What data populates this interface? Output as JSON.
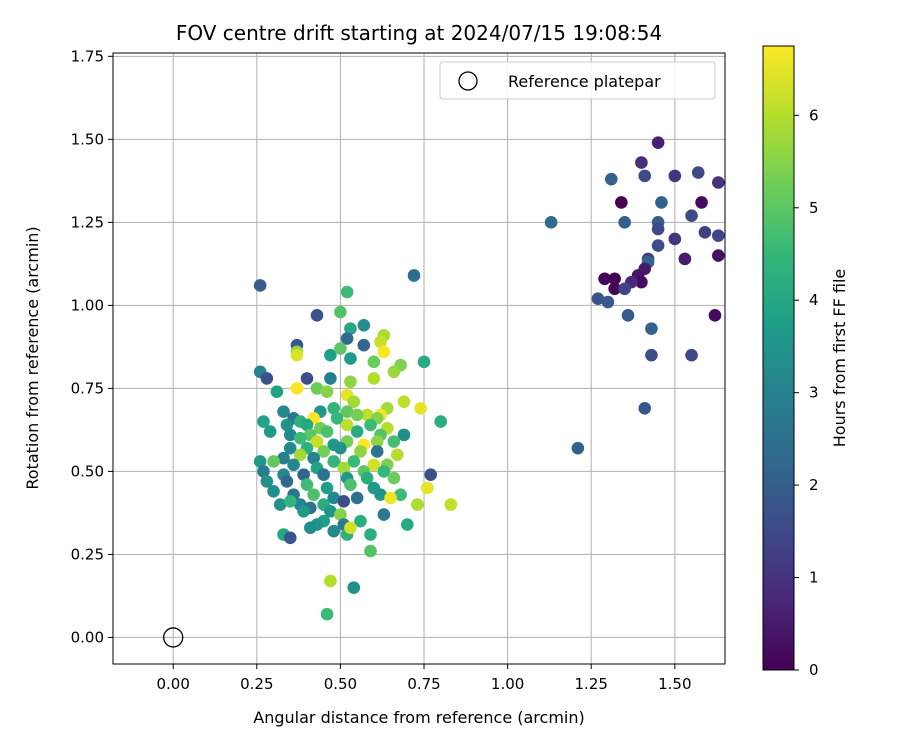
{
  "chart_data": {
    "type": "scatter",
    "title": "FOV centre drift starting at 2024/07/15 19:08:54",
    "xlabel": "Angular distance from reference (arcmin)",
    "ylabel": "Rotation from reference (arcmin)",
    "xlim": [
      -0.18,
      1.65
    ],
    "ylim": [
      -0.08,
      1.76
    ],
    "x_ticks": [
      0.0,
      0.25,
      0.5,
      0.75,
      1.0,
      1.25,
      1.5
    ],
    "x_tick_labels": [
      "0.00",
      "0.25",
      "0.50",
      "0.75",
      "1.00",
      "1.25",
      "1.50"
    ],
    "y_ticks": [
      0.0,
      0.25,
      0.5,
      0.75,
      1.0,
      1.25,
      1.5,
      1.75
    ],
    "y_tick_labels": [
      "0.00",
      "0.25",
      "0.50",
      "0.75",
      "1.00",
      "1.25",
      "1.50",
      "1.75"
    ],
    "grid": true,
    "legend": {
      "position": "top-right",
      "entries": [
        "Reference platepar"
      ]
    },
    "reference_point": {
      "x": 0.0,
      "y": 0.0
    },
    "colorbar": {
      "label": "Hours from first FF file",
      "colormap": "viridis",
      "range": [
        0,
        6.75
      ],
      "ticks": [
        0,
        1,
        2,
        3,
        4,
        5,
        6
      ],
      "tick_labels": [
        "0",
        "1",
        "2",
        "3",
        "4",
        "5",
        "6"
      ]
    },
    "colormap_stops": [
      "#440154",
      "#482878",
      "#3e4989",
      "#31688e",
      "#26828e",
      "#1f9e89",
      "#35b779",
      "#6ece58",
      "#b5de2b",
      "#fde725"
    ],
    "series": [
      {
        "points": [
          [
            1.45,
            1.49,
            0.6
          ],
          [
            1.4,
            1.43,
            0.9
          ],
          [
            1.31,
            1.38,
            2.1
          ],
          [
            1.41,
            1.39,
            1.5
          ],
          [
            1.5,
            1.39,
            1.0
          ],
          [
            1.57,
            1.4,
            1.5
          ],
          [
            1.63,
            1.37,
            1.0
          ],
          [
            1.34,
            1.31,
            0.0
          ],
          [
            1.46,
            1.31,
            2.1
          ],
          [
            1.58,
            1.31,
            0.2
          ],
          [
            1.13,
            1.25,
            2.3
          ],
          [
            1.35,
            1.25,
            2.0
          ],
          [
            1.45,
            1.25,
            1.9
          ],
          [
            1.55,
            1.27,
            1.5
          ],
          [
            1.45,
            1.23,
            1.5
          ],
          [
            1.5,
            1.2,
            1.0
          ],
          [
            1.59,
            1.22,
            1.3
          ],
          [
            1.63,
            1.21,
            1.4
          ],
          [
            1.45,
            1.18,
            1.6
          ],
          [
            1.42,
            1.14,
            1.3
          ],
          [
            1.42,
            1.13,
            2.2
          ],
          [
            1.53,
            1.14,
            0.5
          ],
          [
            1.63,
            1.15,
            0.3
          ],
          [
            1.41,
            1.11,
            0.5
          ],
          [
            1.39,
            1.09,
            0.4
          ],
          [
            1.29,
            1.08,
            0.1
          ],
          [
            1.32,
            1.08,
            0.0
          ],
          [
            1.4,
            1.07,
            0.2
          ],
          [
            1.37,
            1.07,
            0.8
          ],
          [
            1.32,
            1.05,
            0.1
          ],
          [
            1.35,
            1.05,
            1.4
          ],
          [
            1.27,
            1.02,
            1.8
          ],
          [
            1.3,
            1.01,
            1.9
          ],
          [
            1.36,
            0.97,
            1.9
          ],
          [
            1.62,
            0.97,
            0.2
          ],
          [
            1.43,
            0.93,
            2.1
          ],
          [
            1.43,
            0.85,
            1.6
          ],
          [
            1.55,
            0.85,
            1.5
          ],
          [
            1.41,
            0.69,
            1.8
          ],
          [
            1.21,
            0.57,
            2.1
          ],
          [
            0.26,
            1.06,
            2.0
          ],
          [
            0.72,
            1.09,
            2.4
          ],
          [
            0.52,
            1.04,
            4.6
          ],
          [
            0.43,
            0.97,
            1.7
          ],
          [
            0.5,
            0.98,
            4.9
          ],
          [
            0.57,
            0.94,
            3.3
          ],
          [
            0.53,
            0.93,
            4.0
          ],
          [
            0.37,
            0.88,
            1.8
          ],
          [
            0.52,
            0.9,
            2.3
          ],
          [
            0.63,
            0.91,
            5.9
          ],
          [
            0.62,
            0.89,
            6.2
          ],
          [
            0.57,
            0.88,
            2.2
          ],
          [
            0.47,
            0.85,
            3.8
          ],
          [
            0.37,
            0.86,
            5.6
          ],
          [
            0.37,
            0.85,
            6.4
          ],
          [
            0.5,
            0.87,
            5.0
          ],
          [
            0.53,
            0.84,
            3.7
          ],
          [
            0.63,
            0.86,
            6.7
          ],
          [
            0.75,
            0.83,
            4.1
          ],
          [
            0.6,
            0.83,
            5.2
          ],
          [
            0.68,
            0.82,
            5.4
          ],
          [
            0.26,
            0.8,
            3.0
          ],
          [
            0.66,
            0.8,
            5.7
          ],
          [
            0.28,
            0.78,
            1.7
          ],
          [
            0.4,
            0.78,
            1.6
          ],
          [
            0.47,
            0.78,
            2.9
          ],
          [
            0.6,
            0.78,
            6.0
          ],
          [
            0.53,
            0.77,
            5.6
          ],
          [
            0.43,
            0.75,
            5.2
          ],
          [
            0.37,
            0.75,
            6.8
          ],
          [
            0.46,
            0.74,
            5.5
          ],
          [
            0.31,
            0.74,
            3.9
          ],
          [
            0.52,
            0.73,
            6.5
          ],
          [
            0.69,
            0.71,
            6.1
          ],
          [
            0.54,
            0.71,
            5.8
          ],
          [
            0.64,
            0.69,
            5.8
          ],
          [
            0.74,
            0.69,
            6.5
          ],
          [
            0.33,
            0.68,
            3.2
          ],
          [
            0.44,
            0.68,
            3.6
          ],
          [
            0.48,
            0.69,
            4.4
          ],
          [
            0.52,
            0.68,
            5.1
          ],
          [
            0.58,
            0.67,
            6.1
          ],
          [
            0.62,
            0.67,
            6.6
          ],
          [
            0.36,
            0.66,
            2.7
          ],
          [
            0.27,
            0.65,
            3.9
          ],
          [
            0.38,
            0.65,
            4.3
          ],
          [
            0.42,
            0.66,
            6.7
          ],
          [
            0.49,
            0.66,
            4.5
          ],
          [
            0.55,
            0.67,
            5.3
          ],
          [
            0.61,
            0.66,
            5.5
          ],
          [
            0.8,
            0.65,
            4.2
          ],
          [
            0.34,
            0.64,
            3.4
          ],
          [
            0.4,
            0.64,
            4.0
          ],
          [
            0.44,
            0.63,
            5.3
          ],
          [
            0.52,
            0.64,
            6.1
          ],
          [
            0.59,
            0.64,
            4.6
          ],
          [
            0.64,
            0.63,
            6.0
          ],
          [
            0.29,
            0.62,
            3.6
          ],
          [
            0.35,
            0.61,
            3.1
          ],
          [
            0.41,
            0.61,
            5.0
          ],
          [
            0.46,
            0.62,
            4.8
          ],
          [
            0.55,
            0.62,
            4.1
          ],
          [
            0.62,
            0.61,
            4.9
          ],
          [
            0.69,
            0.61,
            3.3
          ],
          [
            0.38,
            0.6,
            4.6
          ],
          [
            0.43,
            0.59,
            6.2
          ],
          [
            0.48,
            0.58,
            3.6
          ],
          [
            0.52,
            0.59,
            5.3
          ],
          [
            0.57,
            0.58,
            6.7
          ],
          [
            0.61,
            0.59,
            5.6
          ],
          [
            0.66,
            0.59,
            4.7
          ],
          [
            0.35,
            0.57,
            3.2
          ],
          [
            0.4,
            0.57,
            4.3
          ],
          [
            0.45,
            0.56,
            5.3
          ],
          [
            0.5,
            0.57,
            3.4
          ],
          [
            0.56,
            0.56,
            5.6
          ],
          [
            0.61,
            0.56,
            2.6
          ],
          [
            0.67,
            0.55,
            6.0
          ],
          [
            0.33,
            0.54,
            2.9
          ],
          [
            0.38,
            0.55,
            5.8
          ],
          [
            0.42,
            0.54,
            3.0
          ],
          [
            0.48,
            0.53,
            4.4
          ],
          [
            0.54,
            0.53,
            4.6
          ],
          [
            0.6,
            0.52,
            6.3
          ],
          [
            0.64,
            0.52,
            5.4
          ],
          [
            0.26,
            0.53,
            3.6
          ],
          [
            0.3,
            0.53,
            5.1
          ],
          [
            0.36,
            0.52,
            3.2
          ],
          [
            0.43,
            0.51,
            3.9
          ],
          [
            0.51,
            0.51,
            5.8
          ],
          [
            0.57,
            0.5,
            5.0
          ],
          [
            0.63,
            0.5,
            4.5
          ],
          [
            0.27,
            0.5,
            2.9
          ],
          [
            0.33,
            0.49,
            3.1
          ],
          [
            0.39,
            0.49,
            2.2
          ],
          [
            0.45,
            0.49,
            2.6
          ],
          [
            0.52,
            0.48,
            3.6
          ],
          [
            0.58,
            0.48,
            4.2
          ],
          [
            0.66,
            0.48,
            5.2
          ],
          [
            0.77,
            0.49,
            1.7
          ],
          [
            0.28,
            0.47,
            3.4
          ],
          [
            0.34,
            0.47,
            2.3
          ],
          [
            0.4,
            0.46,
            4.6
          ],
          [
            0.46,
            0.45,
            3.8
          ],
          [
            0.53,
            0.46,
            4.8
          ],
          [
            0.6,
            0.45,
            3.7
          ],
          [
            0.76,
            0.45,
            6.5
          ],
          [
            0.3,
            0.44,
            3.3
          ],
          [
            0.36,
            0.43,
            2.7
          ],
          [
            0.42,
            0.43,
            4.8
          ],
          [
            0.48,
            0.42,
            3.2
          ],
          [
            0.55,
            0.42,
            2.5
          ],
          [
            0.62,
            0.43,
            3.5
          ],
          [
            0.68,
            0.43,
            4.6
          ],
          [
            0.32,
            0.4,
            3.4
          ],
          [
            0.38,
            0.4,
            3.0
          ],
          [
            0.45,
            0.4,
            4.2
          ],
          [
            0.51,
            0.41,
            1.6
          ],
          [
            0.65,
            0.42,
            6.6
          ],
          [
            0.73,
            0.4,
            5.9
          ],
          [
            0.83,
            0.4,
            6.1
          ],
          [
            0.35,
            0.41,
            4.4
          ],
          [
            0.41,
            0.39,
            2.5
          ],
          [
            0.47,
            0.38,
            3.5
          ],
          [
            0.5,
            0.37,
            5.5
          ],
          [
            0.63,
            0.37,
            2.7
          ],
          [
            0.39,
            0.38,
            3.6
          ],
          [
            0.45,
            0.35,
            3.8
          ],
          [
            0.51,
            0.34,
            2.8
          ],
          [
            0.56,
            0.35,
            4.2
          ],
          [
            0.7,
            0.34,
            4.1
          ],
          [
            0.43,
            0.34,
            3.5
          ],
          [
            0.48,
            0.32,
            3.1
          ],
          [
            0.52,
            0.31,
            4.3
          ],
          [
            0.41,
            0.33,
            3.3
          ],
          [
            0.59,
            0.31,
            4.2
          ],
          [
            0.33,
            0.31,
            4.0
          ],
          [
            0.35,
            0.3,
            1.8
          ],
          [
            0.53,
            0.33,
            6.3
          ],
          [
            0.59,
            0.26,
            4.9
          ],
          [
            0.47,
            0.17,
            6.0
          ],
          [
            0.54,
            0.15,
            3.4
          ],
          [
            0.46,
            0.07,
            4.6
          ]
        ]
      }
    ]
  }
}
